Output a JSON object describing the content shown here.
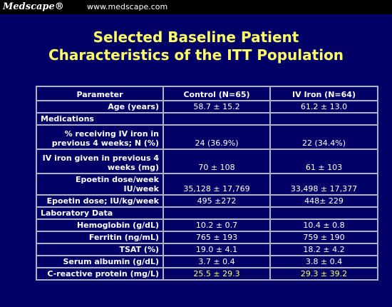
{
  "header": {
    "brand": "Medscape®",
    "url": "www.medscape.com"
  },
  "title": {
    "line1": "Selected Baseline Patient",
    "line2": "Characteristics of the ITT Population"
  },
  "table": {
    "headers": [
      "Parameter",
      "Control (N=65)",
      "IV Iron (N=64)"
    ],
    "rows": [
      {
        "param": "Age (years)",
        "control": "58.7 ± 15.2",
        "iviron": "61.2 ± 13.0"
      },
      {
        "section": "Medications"
      },
      {
        "param": "% receiving IV iron in previous 4 weeks; N (%)",
        "control": "24 (36.9%)",
        "iviron": "22 (34.4%)"
      },
      {
        "param": "IV iron given in previous 4 weeks (mg)",
        "control": "70 ± 108",
        "iviron": "61 ± 103"
      },
      {
        "param": "Epoetin dose/week IU/week",
        "control": "35,128 ± 17,769",
        "iviron": "33,498 ± 17,377"
      },
      {
        "param": "Epoetin dose; IU/kg/week",
        "control": "495 ±272",
        "iviron": "448± 229"
      },
      {
        "section": "Laboratory Data"
      },
      {
        "param": "Hemoglobin (g/dL)",
        "control": "10.2 ± 0.7",
        "iviron": "10.4 ± 0.8"
      },
      {
        "param": "Ferritin (ng/mL)",
        "control": "765 ± 193",
        "iviron": "759 ± 190"
      },
      {
        "param": "TSAT (%)",
        "control": "19.0 ± 4.1",
        "iviron": "18.2 ± 4.2"
      },
      {
        "param": "Serum albumin (g/dL)",
        "control": "3.7 ± 0.4",
        "iviron": "3.8 ± 0.4"
      },
      {
        "param": "C-reactive protein (mg/L)",
        "control": "25.5 ± 29.3",
        "iviron": "29.3 ± 39.2"
      }
    ]
  },
  "colors": {
    "background": "#000066",
    "title": "#ffff66",
    "text": "#ffffff",
    "highlight": "#ffff66"
  }
}
